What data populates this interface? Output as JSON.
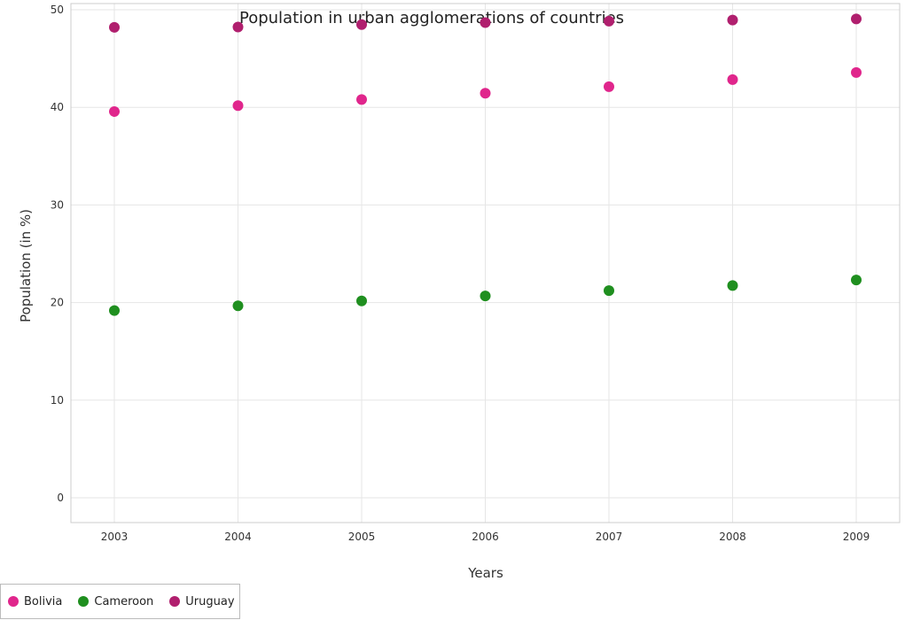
{
  "chart_data": {
    "type": "scatter",
    "title": "Population in urban agglomerations of countries",
    "xlabel": "Years",
    "ylabel": "Population (in %)",
    "categories": [
      "2003",
      "2004",
      "2005",
      "2006",
      "2007",
      "2008",
      "2009"
    ],
    "ylim": [
      0,
      50
    ],
    "yticks": [
      "0",
      "10",
      "20",
      "30",
      "40",
      "50"
    ],
    "grid": true,
    "legend_position": "bottom-left",
    "series": [
      {
        "name": "Bolivia",
        "color": "#e0268c",
        "values": [
          39.57,
          40.18,
          40.8,
          41.45,
          42.12,
          42.84,
          43.57
        ]
      },
      {
        "name": "Cameroon",
        "color": "#1f8f1f",
        "values": [
          19.18,
          19.67,
          20.17,
          20.68,
          21.22,
          21.74,
          22.31
        ]
      },
      {
        "name": "Uruguay",
        "color": "#b01f6e",
        "values": [
          48.2,
          48.23,
          48.48,
          48.68,
          48.83,
          48.95,
          49.06
        ]
      }
    ]
  }
}
